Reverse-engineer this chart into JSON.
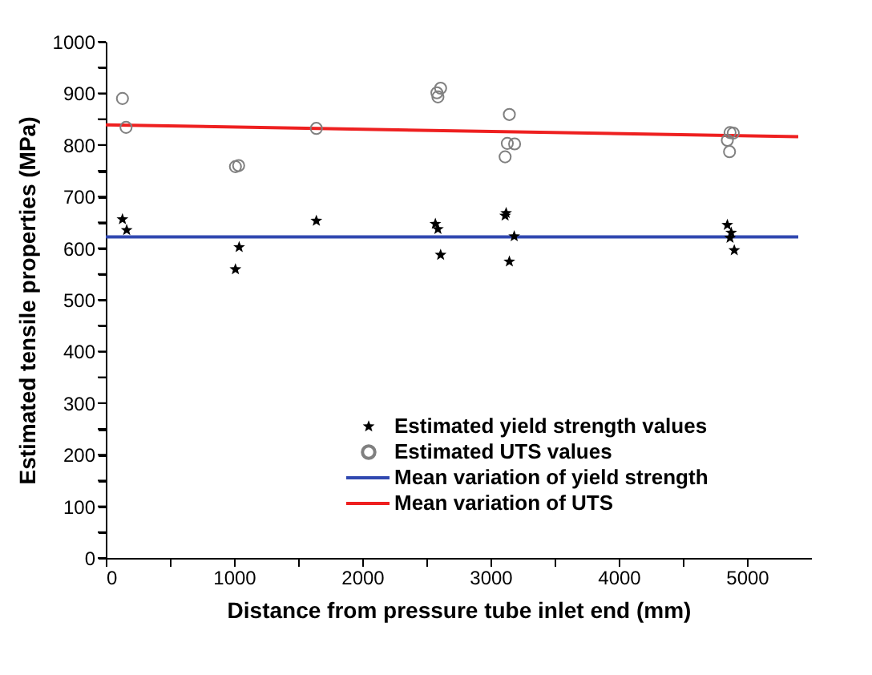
{
  "chart_data": {
    "type": "scatter",
    "xlabel": "Distance from pressure tube inlet end (mm)",
    "ylabel": "Estimated tensile properties (MPa)",
    "xlim": [
      0,
      5500
    ],
    "ylim": [
      0,
      1000
    ],
    "xticks": [
      0,
      {
        "value": 500,
        "label": null
      },
      1000,
      {
        "value": 1500,
        "label": null
      },
      2000,
      {
        "value": 2500,
        "label": null
      },
      3000,
      {
        "value": 3500,
        "label": null
      },
      4000,
      {
        "value": 4500,
        "label": null
      },
      5000
    ],
    "yticks": [
      0,
      {
        "value": 50,
        "label": null
      },
      100,
      {
        "value": 150,
        "label": null
      },
      200,
      {
        "value": 250,
        "label": null
      },
      300,
      {
        "value": 350,
        "label": null
      },
      400,
      {
        "value": 450,
        "label": null
      },
      500,
      {
        "value": 550,
        "label": null
      },
      600,
      {
        "value": 650,
        "label": null
      },
      700,
      {
        "value": 750,
        "label": null
      },
      800,
      {
        "value": 850,
        "label": null
      },
      900,
      {
        "value": 950,
        "label": null
      },
      1000
    ],
    "grid": false,
    "legend": "bottom right",
    "series": [
      {
        "name": "Estimated yield strength values",
        "type": "scatter",
        "marker": "star",
        "color": "#000000",
        "x": [
          130,
          163,
          1011,
          1040,
          1642,
          2570,
          2590,
          2611,
          3122,
          3114,
          3185,
          3147,
          4847,
          4877,
          4868,
          4901
        ],
        "values": [
          656,
          635,
          559,
          602,
          653,
          647,
          637,
          587,
          668,
          663,
          623,
          574,
          645,
          630,
          620,
          596
        ]
      },
      {
        "name": "Estimated UTS values",
        "type": "scatter",
        "marker": "circle",
        "color": "#808080",
        "x": [
          130,
          158,
          1011,
          1036,
          1642,
          2582,
          2611,
          2590,
          3147,
          3131,
          3188,
          3114,
          4868,
          4893,
          4847,
          4864
        ],
        "values": [
          890,
          834,
          758,
          760,
          832,
          901,
          910,
          893,
          859,
          803,
          802,
          777,
          824,
          823,
          809,
          787
        ]
      },
      {
        "name": "Mean variation of yield strength",
        "type": "line",
        "line_style": "solid",
        "color": "#3048b0",
        "x": [
          0,
          5400
        ],
        "values": [
          622,
          622
        ]
      },
      {
        "name": "Mean variation of UTS",
        "type": "line",
        "line_style": "solid",
        "color": "#ee2020",
        "x": [
          0,
          5400
        ],
        "values": [
          839,
          816
        ]
      }
    ]
  }
}
